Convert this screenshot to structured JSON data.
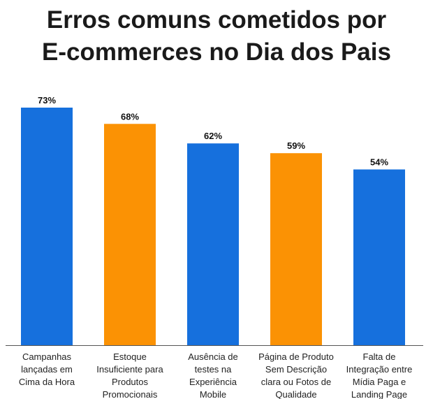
{
  "title_lines": [
    "Erros comuns cometidos por",
    "E-commerces no Dia dos Pais"
  ],
  "colors": {
    "blue": "#1670DD",
    "orange": "#FB9204",
    "axis": "#555555"
  },
  "chart_data": {
    "type": "bar",
    "title": "Erros comuns cometidos por E-commerces no Dia dos Pais",
    "categories": [
      "Campanhas lançadas em Cima da Hora",
      "Estoque Insuficiente para Produtos Promocionais",
      "Ausência de testes na Experiência Mobile",
      "Página de Produto Sem Descrição clara ou Fotos de Qualidade",
      "Falta de Integração entre Mídia Paga e Landing Page"
    ],
    "category_label_lines": [
      [
        "Campanhas",
        "lançadas em",
        "Cima da Hora"
      ],
      [
        "Estoque",
        "Insuficiente para",
        "Produtos",
        "Promocionais"
      ],
      [
        "Ausência de",
        "testes na",
        "Experiência",
        "Mobile"
      ],
      [
        "Página de Produto",
        "Sem Descrição",
        "clara ou Fotos de",
        "Qualidade"
      ],
      [
        "Falta de",
        "Integração entre",
        "Mídia Paga e",
        "Landing Page"
      ]
    ],
    "values": [
      73,
      68,
      62,
      59,
      54
    ],
    "value_labels": [
      "73%",
      "68%",
      "62%",
      "59%",
      "54%"
    ],
    "bar_colors": [
      "#1670DD",
      "#FB9204",
      "#1670DD",
      "#FB9204",
      "#1670DD"
    ],
    "ylim": [
      0,
      73
    ],
    "xlabel": "",
    "ylabel": "",
    "grid": false,
    "legend": "none"
  }
}
